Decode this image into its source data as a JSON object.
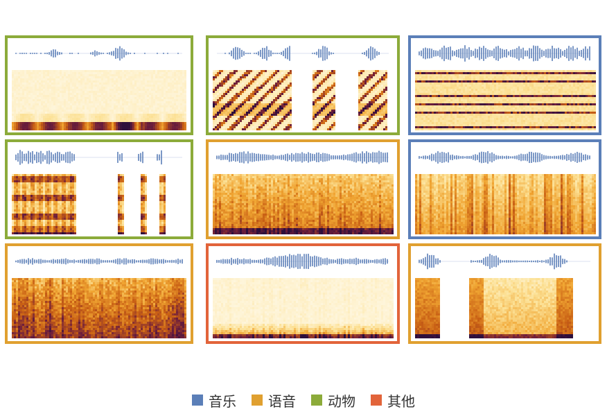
{
  "colors": {
    "music": "#5b7fb8",
    "speech": "#e0a030",
    "animal": "#8cab3a",
    "other": "#e2643a",
    "waveform": "#5b7fb8"
  },
  "legend": [
    {
      "key": "music",
      "label": "音乐"
    },
    {
      "key": "speech",
      "label": "语音"
    },
    {
      "key": "animal",
      "label": "动物"
    },
    {
      "key": "other",
      "label": "其他"
    }
  ],
  "panels": [
    {
      "category": "animal",
      "pattern": "sparse-low-bursts"
    },
    {
      "category": "animal",
      "pattern": "bird-chirps"
    },
    {
      "category": "music",
      "pattern": "horizontal-harmonics"
    },
    {
      "category": "animal",
      "pattern": "repeated-calls"
    },
    {
      "category": "speech",
      "pattern": "dense-speech"
    },
    {
      "category": "music",
      "pattern": "vertical-onsets"
    },
    {
      "category": "speech",
      "pattern": "broadband-speech"
    },
    {
      "category": "other",
      "pattern": "low-rumble"
    },
    {
      "category": "speech",
      "pattern": "three-segments"
    }
  ]
}
